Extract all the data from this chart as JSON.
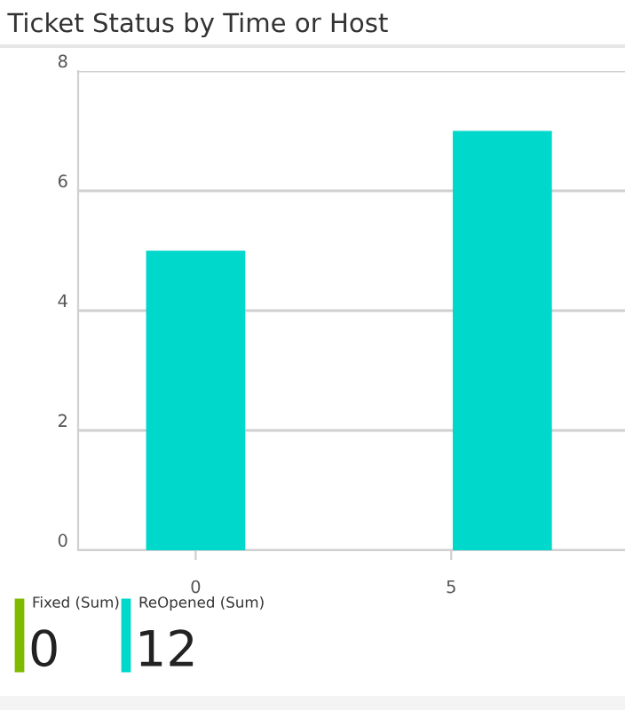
{
  "chart_data": [
    {
      "type": "bar",
      "title": "Ticket Status by Time or Host",
      "x": [
        0,
        6
      ],
      "values": [
        5,
        7
      ],
      "color": "#00d8cc",
      "xlim": [
        -2.3,
        8.4
      ],
      "xticks": [
        0,
        5
      ],
      "ylim": [
        0,
        8
      ],
      "yticks": [
        0,
        2,
        4,
        6,
        8
      ],
      "grid": "y"
    },
    {
      "type": "other",
      "categories": [
        "Fixed (Sum)",
        "ReOpened (Sum)"
      ],
      "values": [
        0,
        12
      ],
      "data_labels": true,
      "colors": [
        "#7fba00",
        "#00d8cc"
      ]
    }
  ]
}
